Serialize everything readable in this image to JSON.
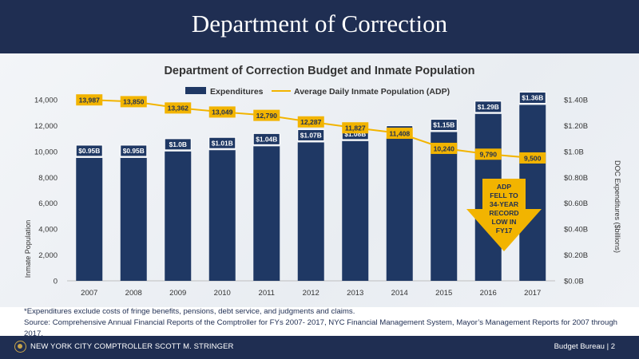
{
  "header": {
    "title": "Department of Correction"
  },
  "chart_data": {
    "type": "bar",
    "title": "Department of Correction Budget and Inmate Population",
    "categories": [
      "2007",
      "2008",
      "2009",
      "2010",
      "2011",
      "2012",
      "2013",
      "2014",
      "2015",
      "2016",
      "2017"
    ],
    "series": [
      {
        "name": "Expenditures",
        "type": "bar",
        "axis": "right",
        "values": [
          0.95,
          0.95,
          1.0,
          1.01,
          1.04,
          1.07,
          1.08,
          1.1,
          1.15,
          1.29,
          1.36
        ],
        "labels": [
          "$0.95B",
          "$0.95B",
          "$1.0B",
          "$1.01B",
          "$1.04B",
          "$1.07B",
          "$1.08B",
          "$1.10B",
          "$1.15B",
          "$1.29B",
          "$1.36B"
        ],
        "color": "#1f3864"
      },
      {
        "name": "Average Daily Inmate Population (ADP)",
        "type": "line",
        "axis": "left",
        "values": [
          13987,
          13850,
          13362,
          13049,
          12790,
          12287,
          11827,
          11408,
          10240,
          9790,
          9500
        ],
        "labels": [
          "13,987",
          "13,850",
          "13,362",
          "13,049",
          "12,790",
          "12,287",
          "11,827",
          "11,408",
          "10,240",
          "9,790",
          "9,500"
        ],
        "color": "#f2b400"
      }
    ],
    "ylabel": "Inmate Population",
    "y2label": "DOC Expenditures ($billions)",
    "ylim": [
      0,
      14000
    ],
    "y2lim": [
      0,
      1.4
    ],
    "yticks": [
      "0",
      "2,000",
      "4,000",
      "6,000",
      "8,000",
      "10,000",
      "12,000",
      "14,000"
    ],
    "y2ticks": [
      "$0.0B",
      "$0.20B",
      "$0.40B",
      "$0.60B",
      "$0.80B",
      "$1.0B",
      "$1.20B",
      "$1.40B"
    ],
    "legend_position": "top",
    "grid": false,
    "annotation": {
      "lines": [
        "ADP",
        "FELL TO",
        "34-YEAR",
        "RECORD",
        "LOW IN",
        "FY17"
      ],
      "color": "#f2b400"
    }
  },
  "notes": {
    "line1": "*Expenditures exclude costs of fringe benefits, pensions, debt service, and judgments and claims.",
    "line2": "Source: Comprehensive Annual Financial Reports of the Comptroller for FYs 2007- 2017, NYC Financial Management System, Mayor’s Management Reports for 2007 through 2017."
  },
  "footer": {
    "left": "NEW YORK CITY COMPTROLLER SCOTT M. STRINGER",
    "right": "Budget Bureau  |  2"
  }
}
